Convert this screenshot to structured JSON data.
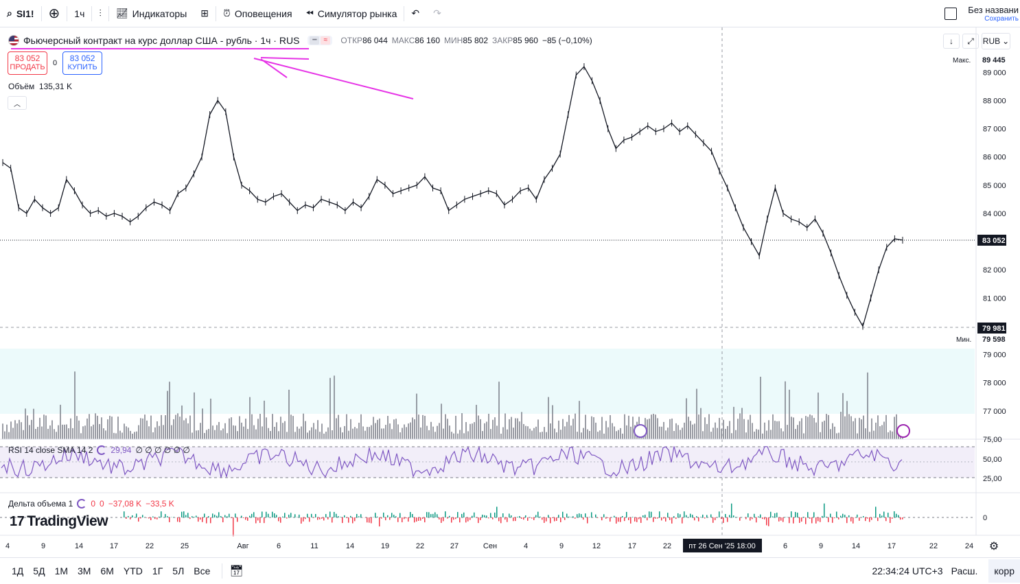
{
  "toolbar": {
    "symbol": "SI1!",
    "interval": "1ч",
    "indicators": "Индикаторы",
    "alerts": "Оповещения",
    "replay": "Симулятор рынка",
    "layout_name": "Без названи",
    "save_label": "Сохранить"
  },
  "legend": {
    "title": "Фьючерсный контракт на курс доллар США - рубль · 1ч · RUS",
    "open_label": "ОТКР",
    "open": "86 044",
    "high_label": "МАКС",
    "high": "86 160",
    "low_label": "МИН",
    "low": "85 802",
    "close_label": "ЗАКР",
    "close": "85 960",
    "change": "−85 (−0,10%)"
  },
  "trade": {
    "sell_price": "83 052",
    "sell_label": "ПРОДАТЬ",
    "spread": "0",
    "buy_price": "83 052",
    "buy_label": "КУПИТЬ"
  },
  "volume": {
    "label": "Объём",
    "value": "135,31 K"
  },
  "rsi": {
    "label": "RSI 14 close SMA 14 2",
    "value": "29,94",
    "extra": "∅ ∅ ∅ ∅ ∅ ∅"
  },
  "delta": {
    "label": "Дельта объема 1",
    "v1": "0",
    "v2": "0",
    "v3": "−37,08 K",
    "v4": "−33,5 K"
  },
  "brand": "TradingView",
  "currency": "RUB",
  "price_axis": {
    "ticks": [
      "89 000",
      "88 000",
      "87 000",
      "86 000",
      "85 000",
      "84 000",
      "82 000",
      "81 000",
      "79 000",
      "78 000",
      "77 000"
    ],
    "max_label": "Макс.",
    "max_value": "89 445",
    "min_label": "Мин.",
    "min_value": "79 598",
    "last_value": "83 052",
    "crosshair_value": "79 981"
  },
  "rsi_axis": [
    "75,00",
    "50,00",
    "25,00"
  ],
  "delta_axis": [
    "0"
  ],
  "time_axis": {
    "ticks": [
      "4",
      "9",
      "14",
      "17",
      "22",
      "25",
      "Авг",
      "6",
      "11",
      "14",
      "19",
      "22",
      "27",
      "Сен",
      "4",
      "9",
      "12",
      "17",
      "22",
      "6",
      "9",
      "14",
      "17",
      "22",
      "24"
    ],
    "crosshair": "пт 26 Сен '25   18:00"
  },
  "bottom": {
    "ranges": [
      "1Д",
      "5Д",
      "1М",
      "3М",
      "6М",
      "YTD",
      "1Г",
      "5Л",
      "Все"
    ],
    "clock": "22:34:24 UTC+3",
    "ext": "Расш.",
    "corr": "корр"
  },
  "chart_data": {
    "type": "line",
    "series": [
      {
        "values": [
          85800,
          85600,
          84200,
          84000,
          84500,
          84200,
          84000,
          84200,
          85200,
          84800,
          84300,
          84000,
          84100,
          83900,
          84000,
          83900,
          83700,
          83900,
          84200,
          84400,
          84300,
          84100,
          84700,
          84900,
          85400,
          86000,
          87500,
          88000,
          87600,
          86000,
          85000,
          84800,
          84500,
          84400,
          84600,
          84700,
          84400,
          84100,
          84300,
          84200,
          84500,
          84400,
          84300,
          84100,
          84400,
          84200,
          84600,
          85200,
          85000,
          84700,
          84800,
          84900,
          85000,
          85300,
          84900,
          84800,
          84100,
          84300,
          84500,
          84600,
          84700,
          84800,
          84700,
          84300,
          84500,
          84800,
          84900,
          84500,
          85200,
          85600,
          86100,
          87500,
          88900,
          89200,
          88700,
          88000,
          87000,
          86300,
          86600,
          86700,
          86900,
          87100,
          86900,
          87000,
          87200,
          86900,
          87100,
          86800,
          86500,
          86200,
          85500,
          84900,
          84200,
          83500,
          83000,
          82500,
          83800,
          84900,
          84000,
          83800,
          83700,
          83500,
          83800,
          83300,
          82600,
          81800,
          81100,
          80500,
          80000,
          81000,
          82000,
          82800,
          83100,
          83052
        ]
      }
    ],
    "ylim": [
      79598,
      89445
    ],
    "rsi_band": [
      25,
      75
    ]
  }
}
